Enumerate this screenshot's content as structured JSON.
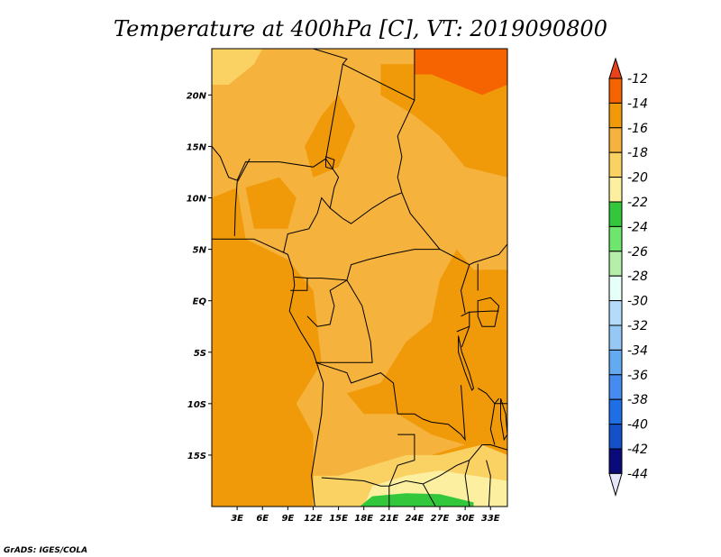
{
  "chart_data": {
    "type": "heatmap",
    "title": "Temperature at 400hPa [C], VT: 2019090800",
    "credit": "GrADS: IGES/COLA",
    "x_ticks": [
      "3E",
      "6E",
      "9E",
      "12E",
      "15E",
      "18E",
      "21E",
      "24E",
      "27E",
      "30E",
      "33E"
    ],
    "y_ticks": [
      "20N",
      "15N",
      "10N",
      "5N",
      "EQ",
      "5S",
      "10S",
      "15S"
    ],
    "xlim": [
      0,
      35
    ],
    "ylim": [
      -20,
      24.5
    ],
    "colorbar": {
      "levels": [
        "-12",
        "-14",
        "-16",
        "-18",
        "-20",
        "-22",
        "-24",
        "-26",
        "-28",
        "-30",
        "-32",
        "-34",
        "-36",
        "-38",
        "-40",
        "-42",
        "-44"
      ],
      "colors": [
        "#e8421a",
        "#f56400",
        "#f09a0a",
        "#f5b23c",
        "#fad264",
        "#fcf0a0",
        "#33c83c",
        "#6ee66e",
        "#b4f0aa",
        "#e6fff8",
        "#b4dcfa",
        "#96c8f5",
        "#64aaf0",
        "#468cf0",
        "#1e6ee6",
        "#1450c8",
        "#0a0a78"
      ],
      "top_arrow": "#e8421a",
      "bottom_arrow": "#e6e6fa"
    },
    "field_colors": {
      "warmest": "#f56400",
      "warm": "#f09a0a",
      "mid": "#f5b23c",
      "cool": "#fad264",
      "cooler": "#fcf0a0",
      "green": "#33c83c"
    }
  }
}
